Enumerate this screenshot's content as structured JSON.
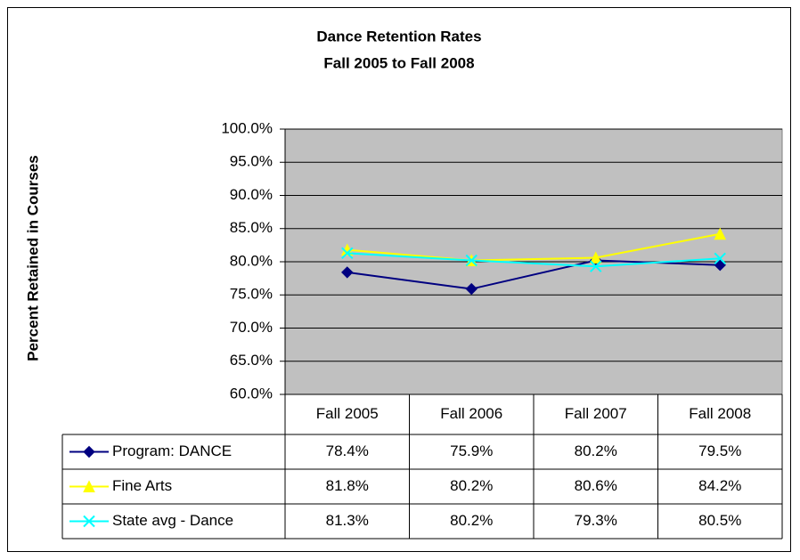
{
  "chart_data": {
    "type": "line",
    "title": "Dance Retention Rates",
    "subtitle": "Fall 2005 to Fall 2008",
    "y_label": "Percent Retained in Courses",
    "categories": [
      "Fall 2005",
      "Fall 2006",
      "Fall 2007",
      "Fall 2008"
    ],
    "series": [
      {
        "name": "Program: DANCE",
        "color": "#000080",
        "marker": "diamond",
        "values": [
          78.4,
          75.9,
          80.2,
          79.5
        ],
        "value_labels": [
          "78.4%",
          "75.9%",
          "80.2%",
          "79.5%"
        ]
      },
      {
        "name": "Fine Arts",
        "color": "#ffff00",
        "marker": "triangle",
        "values": [
          81.8,
          80.2,
          80.6,
          84.2
        ],
        "value_labels": [
          "81.8%",
          "80.2%",
          "80.6%",
          "84.2%"
        ]
      },
      {
        "name": "State avg - Dance",
        "color": "#00ffff",
        "marker": "x",
        "values": [
          81.3,
          80.2,
          79.3,
          80.5
        ],
        "value_labels": [
          "81.3%",
          "80.2%",
          "79.3%",
          "80.5%"
        ]
      }
    ],
    "ylim": [
      60,
      100
    ],
    "yticks": [
      {
        "value": 60,
        "label": "60.0%"
      },
      {
        "value": 65,
        "label": "65.0%"
      },
      {
        "value": 70,
        "label": "70.0%"
      },
      {
        "value": 75,
        "label": "75.0%"
      },
      {
        "value": 80,
        "label": "80.0%"
      },
      {
        "value": 85,
        "label": "85.0%"
      },
      {
        "value": 90,
        "label": "90.0%"
      },
      {
        "value": 95,
        "label": "95.0%"
      },
      {
        "value": 100,
        "label": "100.0%"
      }
    ],
    "grid": true,
    "plot_background": "#c0c0c0"
  }
}
